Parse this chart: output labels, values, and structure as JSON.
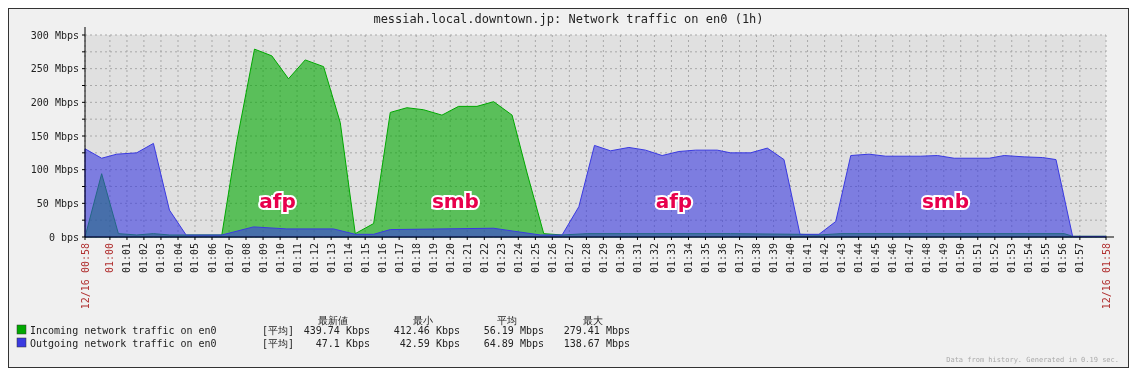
{
  "chart_data": {
    "type": "area",
    "title": "messiah.local.downtown.jp: Network traffic on en0 (1h)",
    "series": [
      {
        "name": "Incoming network traffic on en0",
        "color": "#00a800",
        "x": [
          0.9756,
          0.9919,
          1.0083,
          1.0262,
          1.0426,
          1.0583,
          1.0746,
          1.1096,
          1.1243,
          1.1416,
          1.1586,
          1.1749,
          1.1913,
          1.2093,
          1.2256,
          1.2403,
          1.2583,
          1.2746,
          1.2909,
          1.3072,
          1.3252,
          1.3415,
          1.3595,
          1.3758,
          1.3939,
          1.4086,
          1.4249,
          1.4429,
          1.4674,
          1.5083,
          1.6079,
          1.6759,
          1.6945,
          1.7158,
          1.9347,
          1.9429,
          1.9756
        ],
        "values": [
          0,
          94,
          5,
          3,
          5,
          3,
          3,
          3,
          142,
          279,
          269,
          235,
          263,
          253,
          170,
          5,
          20,
          185,
          192,
          189,
          181,
          194,
          194,
          201,
          181,
          95,
          5,
          3,
          5,
          5,
          5,
          4,
          3,
          5,
          5,
          1,
          1
        ]
      },
      {
        "name": "Outgoing network traffic on en0",
        "color": "#3a3ae0",
        "x": [
          0.9756,
          0.9919,
          1.0067,
          1.0262,
          1.0426,
          1.0583,
          1.0746,
          1.1096,
          1.1406,
          1.1733,
          1.219,
          1.2403,
          1.2583,
          1.2746,
          1.3758,
          1.3939,
          1.4217,
          1.4429,
          1.4593,
          1.4746,
          1.4903,
          1.5083,
          1.5246,
          1.5409,
          1.5573,
          1.5736,
          1.5948,
          1.6079,
          1.6275,
          1.6439,
          1.6602,
          1.6759,
          1.6945,
          1.7109,
          1.7256,
          1.7435,
          1.7599,
          1.7942,
          1.8105,
          1.8269,
          1.8612,
          1.8759,
          1.8955,
          1.9135,
          1.9266,
          1.9429,
          1.9756
        ],
        "values": [
          131,
          117,
          123,
          125,
          139,
          40,
          3,
          3,
          15,
          12,
          12,
          4,
          4,
          11,
          13,
          9,
          3,
          3,
          45,
          136,
          128,
          133,
          129,
          121,
          127,
          129,
          129,
          125,
          125,
          132,
          115,
          4,
          4,
          23,
          121,
          123,
          120,
          120,
          121,
          117,
          117,
          121,
          119,
          118,
          115,
          1,
          1
        ]
      }
    ],
    "xlim": [
      0.9756,
      1.9756
    ],
    "xticks": [
      {
        "value": 0.9756,
        "label": "12/16 00:58"
      },
      {
        "value": 1,
        "label": "01:00"
      },
      {
        "value": 1.0167,
        "label": "01:01"
      },
      {
        "value": 1.0333,
        "label": "01:02"
      },
      {
        "value": 1.05,
        "label": "01:03"
      },
      {
        "value": 1.0667,
        "label": "01:04"
      },
      {
        "value": 1.0833,
        "label": "01:05"
      },
      {
        "value": 1.1,
        "label": "01:06"
      },
      {
        "value": 1.1167,
        "label": "01:07"
      },
      {
        "value": 1.1333,
        "label": "01:08"
      },
      {
        "value": 1.15,
        "label": "01:09"
      },
      {
        "value": 1.1667,
        "label": "01:10"
      },
      {
        "value": 1.1833,
        "label": "01:11"
      },
      {
        "value": 1.2,
        "label": "01:12"
      },
      {
        "value": 1.2167,
        "label": "01:13"
      },
      {
        "value": 1.2333,
        "label": "01:14"
      },
      {
        "value": 1.25,
        "label": "01:15"
      },
      {
        "value": 1.2667,
        "label": "01:16"
      },
      {
        "value": 1.2833,
        "label": "01:17"
      },
      {
        "value": 1.3,
        "label": "01:18"
      },
      {
        "value": 1.3167,
        "label": "01:19"
      },
      {
        "value": 1.3333,
        "label": "01:20"
      },
      {
        "value": 1.35,
        "label": "01:21"
      },
      {
        "value": 1.3667,
        "label": "01:22"
      },
      {
        "value": 1.3833,
        "label": "01:23"
      },
      {
        "value": 1.4,
        "label": "01:24"
      },
      {
        "value": 1.4167,
        "label": "01:25"
      },
      {
        "value": 1.4333,
        "label": "01:26"
      },
      {
        "value": 1.45,
        "label": "01:27"
      },
      {
        "value": 1.4667,
        "label": "01:28"
      },
      {
        "value": 1.4833,
        "label": "01:29"
      },
      {
        "value": 1.5,
        "label": "01:30"
      },
      {
        "value": 1.5167,
        "label": "01:31"
      },
      {
        "value": 1.5333,
        "label": "01:32"
      },
      {
        "value": 1.55,
        "label": "01:33"
      },
      {
        "value": 1.5667,
        "label": "01:34"
      },
      {
        "value": 1.5833,
        "label": "01:35"
      },
      {
        "value": 1.6,
        "label": "01:36"
      },
      {
        "value": 1.6167,
        "label": "01:37"
      },
      {
        "value": 1.6333,
        "label": "01:38"
      },
      {
        "value": 1.65,
        "label": "01:39"
      },
      {
        "value": 1.6667,
        "label": "01:40"
      },
      {
        "value": 1.6833,
        "label": "01:41"
      },
      {
        "value": 1.7,
        "label": "01:42"
      },
      {
        "value": 1.7167,
        "label": "01:43"
      },
      {
        "value": 1.7333,
        "label": "01:44"
      },
      {
        "value": 1.75,
        "label": "01:45"
      },
      {
        "value": 1.7667,
        "label": "01:46"
      },
      {
        "value": 1.7833,
        "label": "01:47"
      },
      {
        "value": 1.8,
        "label": "01:48"
      },
      {
        "value": 1.8167,
        "label": "01:49"
      },
      {
        "value": 1.8333,
        "label": "01:50"
      },
      {
        "value": 1.85,
        "label": "01:51"
      },
      {
        "value": 1.8667,
        "label": "01:52"
      },
      {
        "value": 1.8833,
        "label": "01:53"
      },
      {
        "value": 1.9,
        "label": "01:54"
      },
      {
        "value": 1.9167,
        "label": "01:55"
      },
      {
        "value": 1.9333,
        "label": "01:56"
      },
      {
        "value": 1.95,
        "label": "01:57"
      },
      {
        "value": 1.9756,
        "label": "12/16 01:58"
      }
    ],
    "ylim": [
      0,
      300
    ],
    "yticks": [
      {
        "value": 0,
        "label": "0 bps"
      },
      {
        "value": 25,
        "label": null
      },
      {
        "value": 50,
        "label": "50 Mbps"
      },
      {
        "value": 75,
        "label": null
      },
      {
        "value": 100,
        "label": "100 Mbps"
      },
      {
        "value": 125,
        "label": null
      },
      {
        "value": 150,
        "label": "150 Mbps"
      },
      {
        "value": 175,
        "label": null
      },
      {
        "value": 200,
        "label": "200 Mbps"
      },
      {
        "value": 225,
        "label": null
      },
      {
        "value": 250,
        "label": "250 Mbps"
      },
      {
        "value": 275,
        "label": null
      },
      {
        "value": 300,
        "label": "300 Mbps"
      }
    ],
    "grid": true,
    "legend": "bottom left",
    "annotations": [
      "afp",
      "smb",
      "afp",
      "smb",
      "最新値",
      "最小",
      "平均",
      "最大",
      "[平均]",
      "[平均]",
      "439.74 Kbps",
      "412.46 Kbps",
      "56.19 Mbps",
      "279.41 Mbps",
      "47.1 Kbps",
      "42.59 Kbps",
      "64.89 Mbps",
      "138.67 Mbps",
      "Data from history. Generated in 0.19 sec."
    ]
  }
}
